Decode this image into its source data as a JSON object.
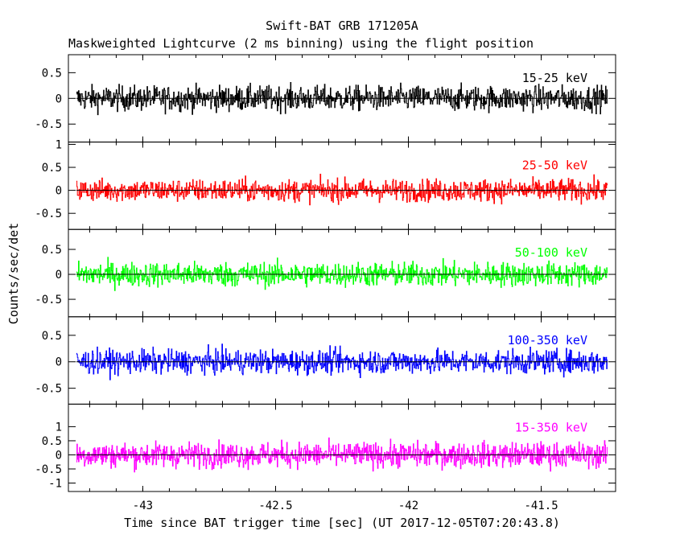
{
  "chart_data": {
    "type": "line",
    "title": "Swift-BAT GRB 171205A",
    "subtitle": "Maskweighted Lightcurve (2 ms binning) using the flight position",
    "xlabel": "Time since BAT trigger time [sec] (UT 2017-12-05T07:20:43.8)",
    "ylabel": "Counts/sec/det",
    "xlim": [
      -43.28,
      -41.22
    ],
    "x_ticks": [
      -43,
      -42.5,
      -42,
      -41.5
    ],
    "x_tick_labels": [
      "-43",
      "-42.5",
      "-42",
      "-41.5"
    ],
    "x_start": -43.25,
    "x_end": -41.25,
    "bin_width": 0.002,
    "grid": false,
    "panels": [
      {
        "name": "15-25 keV",
        "color": "#000000",
        "ylim": [
          -0.85,
          0.85
        ],
        "y_ticks": [
          0.5,
          0,
          -0.5
        ],
        "y_tick_labels": [
          "0.5",
          "0",
          "-0.5"
        ],
        "noise_amplitude": 0.3,
        "mean": 0
      },
      {
        "name": "25-50 keV",
        "color": "#ff0000",
        "ylim": [
          -0.85,
          1.05
        ],
        "y_ticks": [
          1,
          0.5,
          0,
          -0.5
        ],
        "y_tick_labels": [
          "1",
          "0.5",
          "0",
          "-0.5"
        ],
        "noise_amplitude": 0.3,
        "mean": 0
      },
      {
        "name": "50-100 keV",
        "color": "#00ff00",
        "ylim": [
          -0.85,
          0.9
        ],
        "y_ticks": [
          0.5,
          0,
          -0.5
        ],
        "y_tick_labels": [
          "0.5",
          "0",
          "-0.5"
        ],
        "noise_amplitude": 0.3,
        "mean": 0
      },
      {
        "name": "100-350 keV",
        "color": "#0000ff",
        "ylim": [
          -0.8,
          0.85
        ],
        "y_ticks": [
          0.5,
          0,
          -0.5
        ],
        "y_tick_labels": [
          "0.5",
          "0",
          "-0.5"
        ],
        "noise_amplitude": 0.28,
        "mean": 0
      },
      {
        "name": "15-350 keV",
        "color": "#ff00ff",
        "ylim": [
          -1.3,
          1.8
        ],
        "y_ticks": [
          1,
          0.5,
          0,
          -0.5,
          -1
        ],
        "y_tick_labels": [
          "1",
          "0.5",
          "0",
          "-0.5",
          "-1"
        ],
        "noise_amplitude": 0.55,
        "mean": 0
      }
    ]
  }
}
